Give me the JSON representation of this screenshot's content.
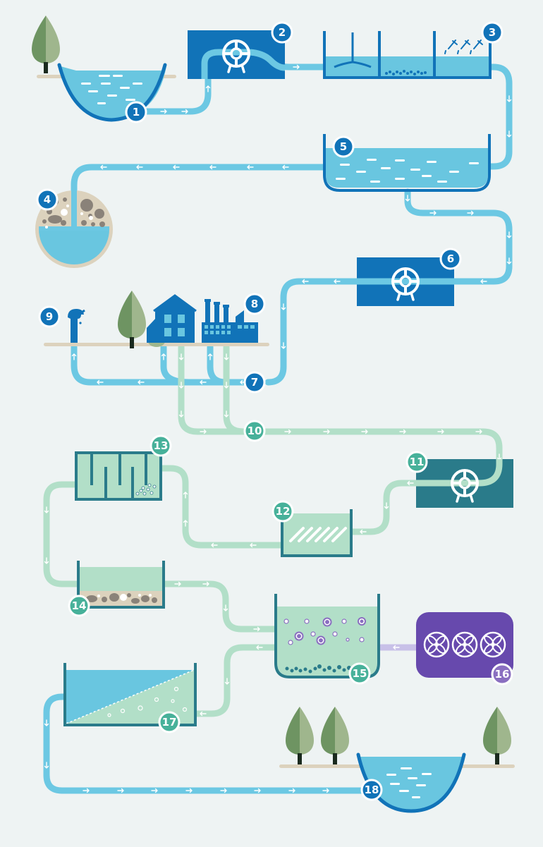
{
  "colors": {
    "background": "#eef3f3",
    "clean_pipe": "#6cc8e3",
    "treated_pipe": "#b2dfc8",
    "air_pipe": "#c8c0e8",
    "blue_dark": "#1173b8",
    "teal_dark": "#2a7b8a",
    "green_badge": "#47b19a",
    "purple": "#6749ad",
    "tree_light": "#9fb68d",
    "tree_dark": "#6e9462",
    "ground": "#dcd2bd",
    "water_light": "#69c6e0"
  },
  "steps": [
    {
      "label": "1",
      "name": "source-reservoir"
    },
    {
      "label": "2",
      "name": "intake-pump"
    },
    {
      "label": "3",
      "name": "coagulation-flocculation"
    },
    {
      "label": "4",
      "name": "sand-filter"
    },
    {
      "label": "5",
      "name": "clean-water-reservoir"
    },
    {
      "label": "6",
      "name": "distribution-pump"
    },
    {
      "label": "7",
      "name": "distribution-network"
    },
    {
      "label": "8",
      "name": "city-and-industry"
    },
    {
      "label": "9",
      "name": "water-tap"
    },
    {
      "label": "10",
      "name": "sewer-collection"
    },
    {
      "label": "11",
      "name": "wastewater-pump"
    },
    {
      "label": "12",
      "name": "screening"
    },
    {
      "label": "13",
      "name": "grit-removal"
    },
    {
      "label": "14",
      "name": "primary-settling"
    },
    {
      "label": "15",
      "name": "aeration-tank"
    },
    {
      "label": "16",
      "name": "air-blowers"
    },
    {
      "label": "17",
      "name": "secondary-clarifier"
    },
    {
      "label": "18",
      "name": "receiving-river"
    }
  ]
}
